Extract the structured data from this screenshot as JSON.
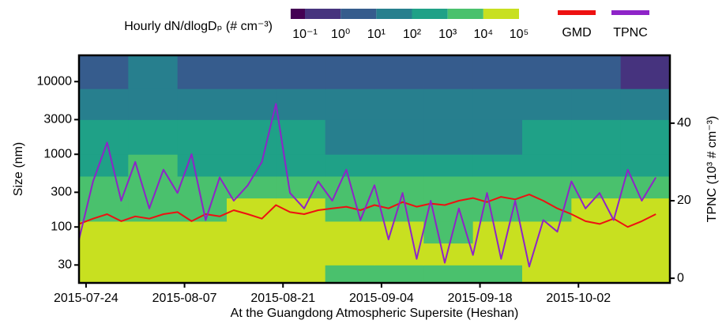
{
  "chart_data": {
    "type": "heatmap-lines",
    "colorbar_title": "Hourly dN/dlogDₚ (# cm⁻³)",
    "x_label": "At the Guangdong Atmospheric Supersite (Heshan)",
    "y_label": "Size (nm)",
    "y2_label": "TPNC (10³ # cm⁻³)",
    "xlim": [
      "2015-07-23",
      "2015-10-15"
    ],
    "xticks": [
      "2015-07-24",
      "2015-08-07",
      "2015-08-21",
      "2015-09-04",
      "2015-09-18",
      "2015-10-02"
    ],
    "ylim": [
      17,
      23000
    ],
    "y_scale": "log",
    "yticks": [
      30,
      100,
      300,
      1000,
      3000,
      10000
    ],
    "y2lim": [
      -1.2,
      57.5
    ],
    "y2ticks": [
      0,
      20,
      40
    ],
    "colorbar": {
      "colors": [
        "#440154",
        "#46337e",
        "#365c8d",
        "#277f8e",
        "#1fa187",
        "#4ac16d",
        "#c8e020"
      ],
      "ticks": [
        {
          "value": 0.1,
          "label": "10⁻¹"
        },
        {
          "value": 1,
          "label": "10⁰"
        },
        {
          "value": 10,
          "label": "10¹"
        },
        {
          "value": 100,
          "label": "10²"
        },
        {
          "value": 1000,
          "label": "10³"
        },
        {
          "value": 10000,
          "label": "10⁴"
        },
        {
          "value": 100000,
          "label": "10⁵"
        }
      ]
    },
    "heatmap": {
      "x_edges": [
        "2015-07-23",
        "2015-07-30",
        "2015-08-06",
        "2015-08-13",
        "2015-08-20",
        "2015-08-27",
        "2015-09-03",
        "2015-09-10",
        "2015-09-17",
        "2015-09-24",
        "2015-10-01",
        "2015-10-08",
        "2015-10-15"
      ],
      "y_edges": [
        17,
        30,
        60,
        120,
        250,
        500,
        1000,
        3000,
        8000,
        23000
      ],
      "values": [
        [
          20000,
          30000,
          20000,
          20000,
          10000,
          5000,
          3000,
          5000,
          8000,
          20000,
          30000,
          20000
        ],
        [
          30000,
          30000,
          20000,
          20000,
          20000,
          10000,
          10000,
          10000,
          10000,
          20000,
          30000,
          20000
        ],
        [
          20000,
          20000,
          15000,
          15000,
          20000,
          10000,
          10000,
          8000,
          10000,
          15000,
          20000,
          20000
        ],
        [
          8000,
          8000,
          8000,
          10000,
          15000,
          8000,
          5000,
          5000,
          5000,
          8000,
          10000,
          10000
        ],
        [
          3000,
          3000,
          3000,
          3000,
          5000,
          3000,
          3000,
          3000,
          2000,
          3000,
          3000,
          3000
        ],
        [
          800,
          1000,
          800,
          800,
          800,
          500,
          500,
          500,
          500,
          800,
          800,
          800
        ],
        [
          200,
          300,
          200,
          200,
          100,
          50,
          50,
          80,
          80,
          200,
          200,
          100
        ],
        [
          50,
          50,
          50,
          50,
          30,
          10,
          10,
          10,
          20,
          50,
          30,
          10
        ],
        [
          5,
          10,
          5,
          5,
          5,
          2,
          2,
          3,
          3,
          5,
          3,
          0.5
        ]
      ]
    },
    "x": [
      "2015-07-23",
      "2015-07-25",
      "2015-07-27",
      "2015-07-29",
      "2015-07-31",
      "2015-08-02",
      "2015-08-04",
      "2015-08-06",
      "2015-08-08",
      "2015-08-10",
      "2015-08-12",
      "2015-08-14",
      "2015-08-16",
      "2015-08-18",
      "2015-08-20",
      "2015-08-22",
      "2015-08-24",
      "2015-08-26",
      "2015-08-28",
      "2015-08-30",
      "2015-09-01",
      "2015-09-03",
      "2015-09-05",
      "2015-09-07",
      "2015-09-09",
      "2015-09-11",
      "2015-09-13",
      "2015-09-15",
      "2015-09-17",
      "2015-09-19",
      "2015-09-21",
      "2015-09-23",
      "2015-09-25",
      "2015-09-27",
      "2015-09-29",
      "2015-10-01",
      "2015-10-03",
      "2015-10-05",
      "2015-10-07",
      "2015-10-09",
      "2015-10-11",
      "2015-10-13"
    ],
    "series": [
      {
        "name": "GMD",
        "color": "#ee1111",
        "axis": "y",
        "values": [
          110,
          130,
          150,
          120,
          140,
          130,
          150,
          160,
          120,
          150,
          140,
          170,
          150,
          130,
          200,
          160,
          150,
          170,
          180,
          190,
          170,
          200,
          180,
          220,
          190,
          210,
          200,
          230,
          250,
          220,
          260,
          240,
          280,
          230,
          180,
          150,
          120,
          110,
          130,
          100,
          120,
          150
        ]
      },
      {
        "name": "TPNC",
        "color": "#8e24c8",
        "axis": "y2",
        "values": [
          10,
          25,
          35,
          20,
          30,
          18,
          28,
          22,
          32,
          15,
          26,
          20,
          24,
          30,
          45,
          22,
          18,
          25,
          20,
          28,
          15,
          24,
          10,
          22,
          5,
          20,
          4,
          18,
          6,
          22,
          5,
          20,
          3,
          15,
          12,
          25,
          18,
          22,
          15,
          28,
          20,
          26
        ]
      }
    ]
  }
}
